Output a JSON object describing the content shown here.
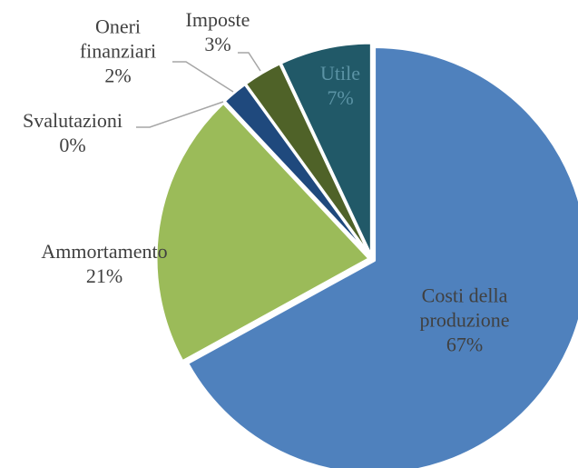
{
  "chart_data": {
    "type": "pie",
    "categories": [
      "Costi della produzione",
      "Ammortamento",
      "Svalutazioni",
      "Oneri finanziari",
      "Imposte",
      "Utile"
    ],
    "values": [
      67,
      21,
      0,
      2,
      3,
      7
    ],
    "value_labels": [
      "67%",
      "21%",
      "0%",
      "2%",
      "3%",
      "7%"
    ],
    "colors": [
      "#4f81bd",
      "#9bbb59",
      "#c0504d",
      "#1f497d",
      "#4f6228",
      "#215968"
    ]
  }
}
